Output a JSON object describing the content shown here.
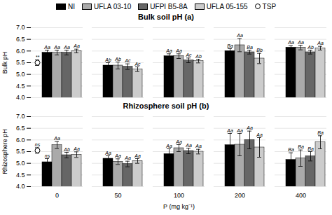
{
  "chart_data": [
    {
      "type": "bar",
      "title": "Bulk soil pH (a)",
      "y_label": "Bulk pH",
      "categories": [
        "0",
        "50",
        "100",
        "200",
        "400"
      ],
      "series": [
        {
          "name": "NI",
          "color": "#000000",
          "values": [
            5.93,
            5.38,
            5.78,
            6.0,
            6.15
          ],
          "errors": [
            0.1,
            0.12,
            0.1,
            0.1,
            0.08
          ],
          "letters": [
            "Aa",
            "Ab",
            "Aa",
            "Ba",
            "Aa"
          ]
        },
        {
          "name": "UFLA 03-10",
          "color": "#aaaaaa",
          "values": [
            5.93,
            5.38,
            5.78,
            6.25,
            6.15
          ],
          "errors": [
            0.1,
            0.15,
            0.1,
            0.28,
            0.1
          ],
          "letters": [
            "Aa",
            "Ab",
            "Aa",
            "Aa",
            "Aa"
          ]
        },
        {
          "name": "UFPI B5-8A",
          "color": "#666666",
          "values": [
            5.93,
            5.33,
            5.6,
            5.95,
            5.95
          ],
          "errors": [
            0.1,
            0.12,
            0.1,
            0.08,
            0.08
          ],
          "letters": [
            "Aa",
            "Ac",
            "Ac",
            "Ba",
            "Ab"
          ]
        },
        {
          "name": "UFLA 05-155",
          "color": "#cccccc",
          "values": [
            6.0,
            5.22,
            5.57,
            5.68,
            6.12
          ],
          "errors": [
            0.08,
            0.1,
            0.08,
            0.22,
            0.08
          ],
          "letters": [
            "Aa",
            "Ac",
            "Ab",
            "Bb",
            "Aa"
          ]
        },
        {
          "name": "TSP",
          "type": "scatter",
          "marker": "circle",
          "color": "#ffffff",
          "values": [
            5.5,
            null,
            null,
            null,
            null
          ],
          "errors": [
            0.12,
            null,
            null,
            null,
            null
          ],
          "letters": [
            "**",
            null,
            null,
            null,
            null
          ]
        }
      ],
      "ylim": [
        4.0,
        7.0
      ],
      "yticks": [
        {
          "value": 4.0,
          "label": "4.0"
        },
        4.5,
        {
          "value": 5.0,
          "label": "5.0"
        },
        5.5,
        {
          "value": 6.0,
          "label": "6.0"
        },
        6.5,
        {
          "value": 7.0,
          "label": "7.0"
        }
      ],
      "grid": true,
      "legend": "top",
      "tick_labels": "y"
    },
    {
      "type": "bar",
      "title": "Rhizosphere soil pH (b)",
      "y_label": "Rhizosphere pH",
      "x_label": "P (mg kg⁻¹)",
      "categories": [
        "0",
        "50",
        "100",
        "200",
        "400"
      ],
      "series": [
        {
          "name": "NI",
          "color": "#000000",
          "values": [
            5.05,
            5.2,
            5.4,
            5.78,
            5.15
          ],
          "errors": [
            0.15,
            0.12,
            0.22,
            0.5,
            0.3
          ],
          "letters": [
            "ns",
            "Aa",
            "Aa",
            "Aa",
            "Ba"
          ]
        },
        {
          "name": "UFLA 03-10",
          "color": "#aaaaaa",
          "values": [
            5.78,
            5.07,
            5.65,
            5.8,
            5.22
          ],
          "errors": [
            0.15,
            0.12,
            0.15,
            0.48,
            0.35
          ],
          "letters": [
            "Aa",
            "Aa",
            "Aa",
            "Aa",
            "Ba"
          ]
        },
        {
          "name": "UFPI B5-8A",
          "color": "#666666",
          "values": [
            5.35,
            4.97,
            5.53,
            6.0,
            5.3
          ],
          "errors": [
            0.12,
            0.12,
            0.12,
            0.38,
            0.2
          ],
          "letters": [
            "Ab",
            "Aa",
            "Aa",
            "Aa",
            "Ba"
          ]
        },
        {
          "name": "UFLA 05-155",
          "color": "#cccccc",
          "values": [
            5.37,
            5.1,
            5.5,
            5.68,
            5.9
          ],
          "errors": [
            0.12,
            0.1,
            0.1,
            0.42,
            0.28
          ],
          "letters": [
            "Aa",
            "Aa",
            "Aa",
            "Aa",
            "Ba"
          ]
        },
        {
          "name": "TSP",
          "type": "scatter",
          "marker": "circle",
          "color": "#ffffff",
          "values": [
            5.55,
            null,
            null,
            null,
            null
          ],
          "errors": [
            0.12,
            null,
            null,
            null,
            null
          ],
          "letters": [
            "ns",
            null,
            null,
            null,
            null
          ]
        }
      ],
      "ylim": [
        4.0,
        7.0
      ],
      "yticks": [
        {
          "value": 4.0,
          "label": "4.0"
        },
        4.5,
        {
          "value": 5.0,
          "label": "5.0"
        },
        5.5,
        {
          "value": 6.0,
          "label": "6.0"
        },
        6.5,
        {
          "value": 7.0,
          "label": "7.0"
        }
      ],
      "grid": true
    }
  ]
}
